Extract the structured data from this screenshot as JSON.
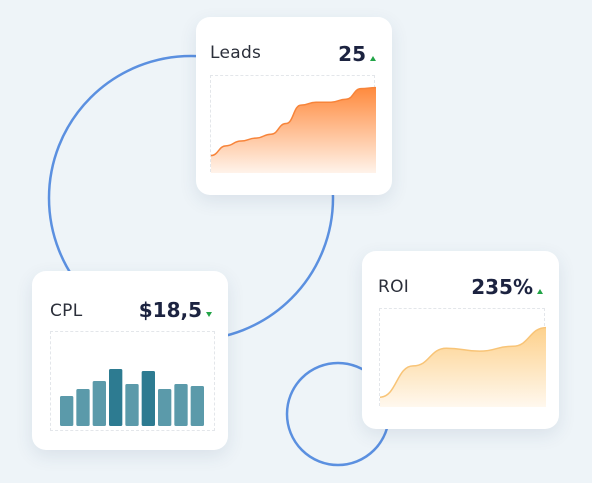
{
  "colors": {
    "background": "#eef4f8",
    "ring": "#5b90e0",
    "leads_gradient_top": "#ff8a3d",
    "leads_gradient_bottom": "#fff3ea",
    "cpl_bar_light": "#5b9aaa",
    "cpl_bar_dark": "#2d7b91",
    "roi_gradient_top": "#fdd18c",
    "roi_gradient_bottom": "#fff8ee",
    "trend_indicator": "#22a447"
  },
  "cards": {
    "leads": {
      "title": "Leads",
      "value": "25",
      "trend": "up",
      "chart": {
        "type": "area",
        "values": [
          18,
          28,
          33,
          36,
          40,
          51,
          70,
          73,
          73,
          76,
          87,
          88
        ]
      }
    },
    "cpl": {
      "title": "CPL",
      "value": "$18,5",
      "trend": "down",
      "chart": {
        "type": "bar",
        "values": [
          30,
          37,
          45,
          57,
          42,
          55,
          37,
          42,
          40
        ],
        "highlighted": [
          3,
          5
        ]
      }
    },
    "roi": {
      "title": "ROI",
      "value": "235%",
      "trend": "up",
      "chart": {
        "type": "area",
        "values": [
          10,
          42,
          60,
          57,
          62,
          81
        ]
      }
    }
  }
}
